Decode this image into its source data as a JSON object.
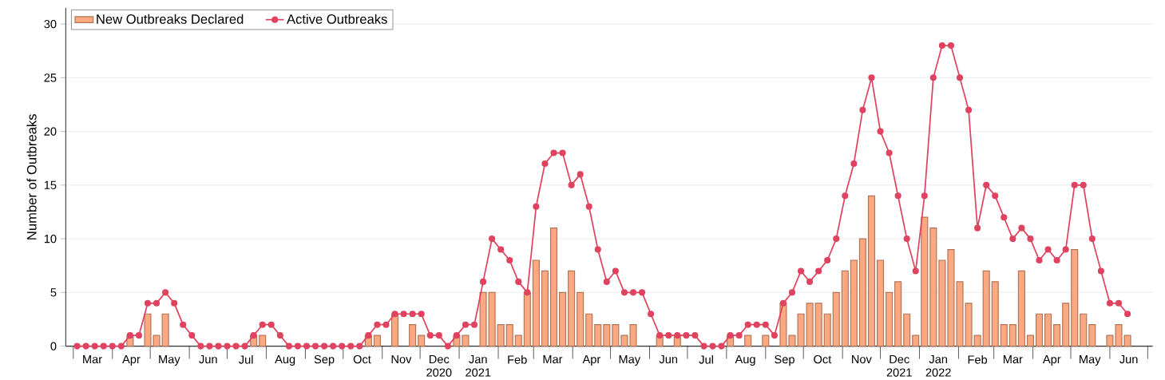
{
  "chart_data": {
    "type": "bar",
    "ylabel": "Number of Outbreaks",
    "x": [
      "2020-03-04",
      "2020-03-11",
      "2020-03-18",
      "2020-03-25",
      "2020-04-01",
      "2020-04-08",
      "2020-04-15",
      "2020-04-22",
      "2020-04-29",
      "2020-05-06",
      "2020-05-13",
      "2020-05-20",
      "2020-05-27",
      "2020-06-03",
      "2020-06-10",
      "2020-06-17",
      "2020-06-24",
      "2020-07-01",
      "2020-07-08",
      "2020-07-15",
      "2020-07-22",
      "2020-07-29",
      "2020-08-05",
      "2020-08-12",
      "2020-08-19",
      "2020-08-26",
      "2020-09-02",
      "2020-09-09",
      "2020-09-16",
      "2020-09-23",
      "2020-09-30",
      "2020-10-07",
      "2020-10-14",
      "2020-10-21",
      "2020-10-28",
      "2020-11-04",
      "2020-11-11",
      "2020-11-18",
      "2020-11-25",
      "2020-12-02",
      "2020-12-09",
      "2020-12-16",
      "2020-12-23",
      "2020-12-30",
      "2021-01-06",
      "2021-01-13",
      "2021-01-20",
      "2021-01-27",
      "2021-02-03",
      "2021-02-10",
      "2021-02-17",
      "2021-02-24",
      "2021-03-03",
      "2021-03-10",
      "2021-03-17",
      "2021-03-24",
      "2021-03-31",
      "2021-04-07",
      "2021-04-14",
      "2021-04-21",
      "2021-04-28",
      "2021-05-05",
      "2021-05-12",
      "2021-05-19",
      "2021-05-26",
      "2021-06-02",
      "2021-06-09",
      "2021-06-16",
      "2021-06-23",
      "2021-06-30",
      "2021-07-07",
      "2021-07-14",
      "2021-07-21",
      "2021-07-28",
      "2021-08-04",
      "2021-08-11",
      "2021-08-18",
      "2021-08-25",
      "2021-09-01",
      "2021-09-08",
      "2021-09-15",
      "2021-09-22",
      "2021-09-29",
      "2021-10-06",
      "2021-10-13",
      "2021-10-20",
      "2021-10-27",
      "2021-11-03",
      "2021-11-10",
      "2021-11-17",
      "2021-11-24",
      "2021-12-01",
      "2021-12-08",
      "2021-12-15",
      "2021-12-22",
      "2021-12-29",
      "2022-01-05",
      "2022-01-12",
      "2022-01-19",
      "2022-01-26",
      "2022-02-02",
      "2022-02-09",
      "2022-02-16",
      "2022-02-23",
      "2022-03-02",
      "2022-03-09",
      "2022-03-16",
      "2022-03-23",
      "2022-03-30",
      "2022-04-06",
      "2022-04-13",
      "2022-04-20",
      "2022-04-27",
      "2022-05-04",
      "2022-05-11",
      "2022-05-18",
      "2022-05-25",
      "2022-06-01",
      "2022-06-08",
      "2022-06-15"
    ],
    "series": [
      {
        "name": "New Outbreaks Declared",
        "color": "#FCA981",
        "values": [
          0,
          0,
          0,
          0,
          0,
          0,
          1,
          0,
          3,
          1,
          3,
          0,
          0,
          0,
          0,
          0,
          0,
          0,
          0,
          0,
          1,
          1,
          0,
          0,
          0,
          0,
          0,
          0,
          0,
          0,
          0,
          0,
          0,
          1,
          1,
          0,
          3,
          0,
          2,
          1,
          0,
          0,
          0,
          1,
          1,
          0,
          5,
          5,
          2,
          2,
          1,
          5,
          8,
          7,
          11,
          5,
          7,
          5,
          3,
          2,
          2,
          2,
          1,
          2,
          0,
          0,
          1,
          0,
          1,
          0,
          0,
          0,
          0,
          0,
          1,
          0,
          1,
          0,
          1,
          0,
          4,
          1,
          3,
          4,
          4,
          3,
          5,
          7,
          8,
          10,
          14,
          8,
          5,
          6,
          3,
          1,
          12,
          11,
          8,
          9,
          6,
          4,
          1,
          7,
          6,
          2,
          2,
          7,
          1,
          3,
          3,
          2,
          4,
          9,
          3,
          2,
          0,
          1,
          2,
          1
        ]
      },
      {
        "name": "Active Outbreaks",
        "type": "line",
        "color": "#E0435F",
        "marker": "circle",
        "line_style": "solid",
        "values": [
          0,
          0,
          0,
          0,
          0,
          0,
          1,
          1,
          4,
          4,
          5,
          4,
          2,
          1,
          0,
          0,
          0,
          0,
          0,
          0,
          1,
          2,
          2,
          1,
          0,
          0,
          0,
          0,
          0,
          0,
          0,
          0,
          0,
          1,
          2,
          2,
          3,
          3,
          3,
          3,
          1,
          1,
          0,
          1,
          2,
          2,
          6,
          10,
          9,
          8,
          6,
          5,
          13,
          17,
          18,
          18,
          15,
          16,
          13,
          9,
          6,
          7,
          5,
          5,
          5,
          3,
          1,
          1,
          1,
          1,
          1,
          0,
          0,
          0,
          1,
          1,
          2,
          2,
          2,
          1,
          4,
          5,
          7,
          6,
          7,
          8,
          10,
          14,
          17,
          22,
          25,
          20,
          18,
          14,
          10,
          7,
          14,
          25,
          28,
          28,
          25,
          22,
          11,
          15,
          14,
          12,
          10,
          11,
          10,
          8,
          9,
          8,
          9,
          15,
          15,
          10,
          7,
          4,
          4,
          3
        ]
      }
    ],
    "xlim": [
      "2020-02-24",
      "2022-07-05"
    ],
    "xticks": [
      {
        "value": "2020-03-01",
        "label": null
      },
      {
        "value": "2020-03-16",
        "label": "Mar"
      },
      {
        "value": "2020-04-01",
        "label": null
      },
      {
        "value": "2020-04-16",
        "label": "Apr"
      },
      {
        "value": "2020-05-01",
        "label": null
      },
      {
        "value": "2020-05-16",
        "label": "May"
      },
      {
        "value": "2020-06-01",
        "label": null
      },
      {
        "value": "2020-06-16",
        "label": "Jun"
      },
      {
        "value": "2020-07-01",
        "label": null
      },
      {
        "value": "2020-07-16",
        "label": "Jul"
      },
      {
        "value": "2020-08-01",
        "label": null
      },
      {
        "value": "2020-08-16",
        "label": "Aug"
      },
      {
        "value": "2020-09-01",
        "label": null
      },
      {
        "value": "2020-09-16",
        "label": "Sep"
      },
      {
        "value": "2020-10-01",
        "label": null
      },
      {
        "value": "2020-10-16",
        "label": "Oct"
      },
      {
        "value": "2020-11-01",
        "label": null
      },
      {
        "value": "2020-11-16",
        "label": "Nov"
      },
      {
        "value": "2020-12-01",
        "label": null
      },
      {
        "value": "2020-12-16",
        "label": "Dec 2020"
      },
      {
        "value": "2021-01-01",
        "label": null
      },
      {
        "value": "2021-01-16",
        "label": "Jan 2021"
      },
      {
        "value": "2021-02-01",
        "label": null
      },
      {
        "value": "2021-02-16",
        "label": "Feb"
      },
      {
        "value": "2021-03-01",
        "label": null
      },
      {
        "value": "2021-03-16",
        "label": "Mar"
      },
      {
        "value": "2021-04-01",
        "label": null
      },
      {
        "value": "2021-04-16",
        "label": "Apr"
      },
      {
        "value": "2021-05-01",
        "label": null
      },
      {
        "value": "2021-05-16",
        "label": "May"
      },
      {
        "value": "2021-06-01",
        "label": null
      },
      {
        "value": "2021-06-16",
        "label": "Jun"
      },
      {
        "value": "2021-07-01",
        "label": null
      },
      {
        "value": "2021-07-16",
        "label": "Jul"
      },
      {
        "value": "2021-08-01",
        "label": null
      },
      {
        "value": "2021-08-16",
        "label": "Aug"
      },
      {
        "value": "2021-09-01",
        "label": null
      },
      {
        "value": "2021-09-16",
        "label": "Sep"
      },
      {
        "value": "2021-10-01",
        "label": null
      },
      {
        "value": "2021-10-16",
        "label": "Oct"
      },
      {
        "value": "2021-11-01",
        "label": null
      },
      {
        "value": "2021-11-16",
        "label": "Nov"
      },
      {
        "value": "2021-12-01",
        "label": null
      },
      {
        "value": "2021-12-16",
        "label": "Dec 2021"
      },
      {
        "value": "2022-01-01",
        "label": null
      },
      {
        "value": "2022-01-16",
        "label": "Jan 2022"
      },
      {
        "value": "2022-02-01",
        "label": null
      },
      {
        "value": "2022-02-16",
        "label": "Feb"
      },
      {
        "value": "2022-03-01",
        "label": null
      },
      {
        "value": "2022-03-16",
        "label": "Mar"
      },
      {
        "value": "2022-04-01",
        "label": null
      },
      {
        "value": "2022-04-16",
        "label": "Apr"
      },
      {
        "value": "2022-05-01",
        "label": null
      },
      {
        "value": "2022-05-16",
        "label": "May"
      },
      {
        "value": "2022-06-01",
        "label": null
      },
      {
        "value": "2022-06-16",
        "label": "Jun"
      },
      {
        "value": "2022-07-01",
        "label": null
      }
    ],
    "ylim": [
      0,
      31.5
    ],
    "yticks": [
      0,
      5,
      10,
      15,
      20,
      25,
      30
    ],
    "grid": "y",
    "legend": "top left"
  }
}
